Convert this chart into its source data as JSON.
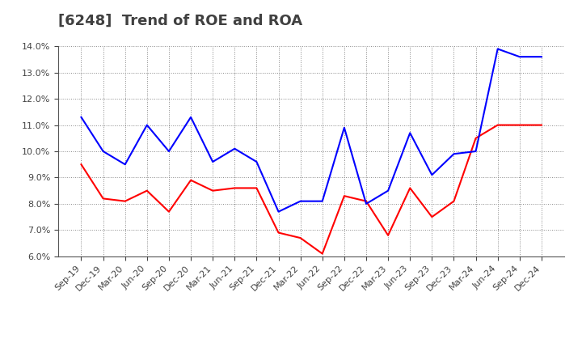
{
  "title": "[6248]  Trend of ROE and ROA",
  "x_labels": [
    "Sep-19",
    "Dec-19",
    "Mar-20",
    "Jun-20",
    "Sep-20",
    "Dec-20",
    "Mar-21",
    "Jun-21",
    "Sep-21",
    "Dec-21",
    "Mar-22",
    "Jun-22",
    "Sep-22",
    "Dec-22",
    "Mar-23",
    "Jun-23",
    "Sep-23",
    "Dec-23",
    "Mar-24",
    "Jun-24",
    "Sep-24",
    "Dec-24"
  ],
  "ROE": [
    9.5,
    8.2,
    8.1,
    8.5,
    7.7,
    8.9,
    8.5,
    8.6,
    8.6,
    6.9,
    6.7,
    6.1,
    8.3,
    8.1,
    6.8,
    8.6,
    7.5,
    8.1,
    10.5,
    11.0,
    11.0,
    11.0
  ],
  "ROA": [
    11.3,
    10.0,
    9.5,
    11.0,
    10.0,
    11.3,
    9.6,
    10.1,
    9.6,
    7.7,
    8.1,
    8.1,
    10.9,
    8.0,
    8.5,
    10.7,
    9.1,
    9.9,
    10.0,
    13.9,
    13.6,
    13.6
  ],
  "ROE_color": "#ff0000",
  "ROA_color": "#0000ff",
  "ylim_min": 6.0,
  "ylim_max": 14.0,
  "yticks": [
    6.0,
    7.0,
    8.0,
    9.0,
    10.0,
    11.0,
    12.0,
    13.0,
    14.0
  ],
  "background_color": "#ffffff",
  "grid_color": "#888888",
  "title_fontsize": 13,
  "title_color": "#404040",
  "axis_fontsize": 8,
  "legend_fontsize": 10
}
